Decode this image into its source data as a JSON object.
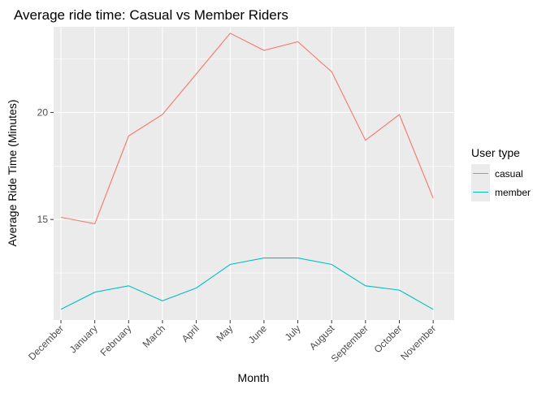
{
  "chart_data": {
    "type": "line",
    "title": "Average ride time: Casual vs Member Riders",
    "xlabel": "Month",
    "ylabel": "Average Ride Time (Minutes)",
    "categories": [
      "December",
      "January",
      "February",
      "March",
      "April",
      "May",
      "June",
      "July",
      "August",
      "September",
      "October",
      "November"
    ],
    "y_ticks": [
      15,
      20
    ],
    "ylim": [
      10.3,
      24.0
    ],
    "grid": true,
    "legend": {
      "title": "User type",
      "position": "right"
    },
    "series": [
      {
        "name": "casual",
        "color": "#F8766D",
        "values": [
          15.1,
          14.8,
          18.9,
          19.9,
          21.8,
          23.7,
          22.9,
          23.3,
          21.9,
          18.7,
          19.9,
          16.0
        ]
      },
      {
        "name": "member",
        "color": "#00BFC4",
        "values": [
          10.8,
          11.6,
          11.9,
          11.2,
          11.8,
          12.9,
          13.2,
          13.2,
          12.9,
          11.9,
          11.7,
          10.8
        ]
      }
    ]
  }
}
